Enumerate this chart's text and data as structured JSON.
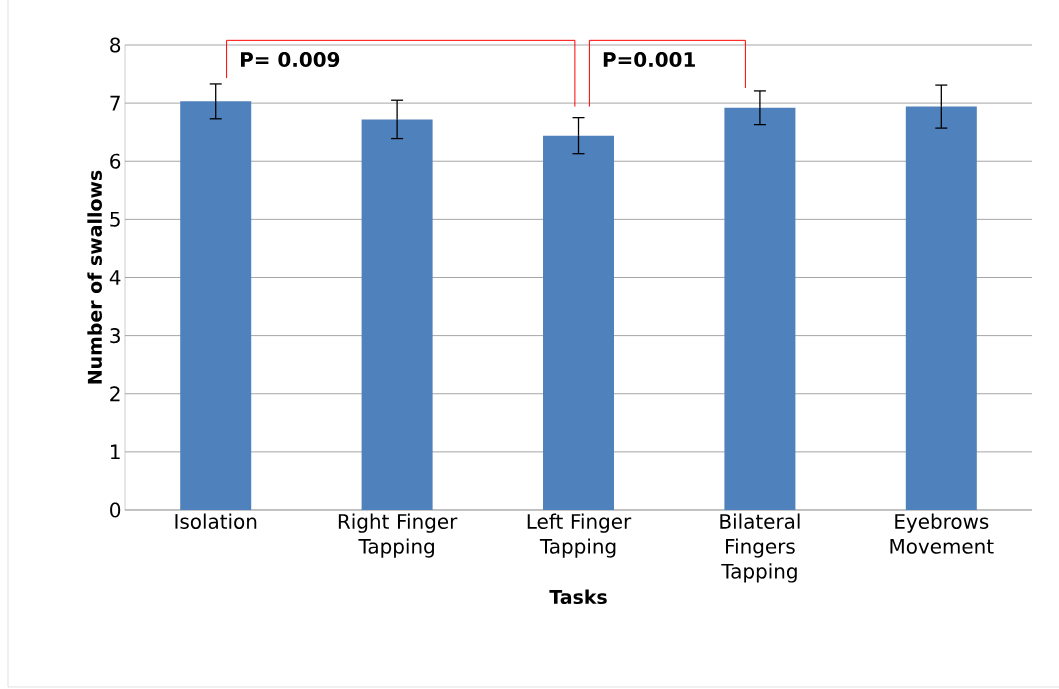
{
  "chart_data": {
    "type": "bar",
    "xlabel": "Tasks",
    "ylabel": "Number of swallows",
    "categories": [
      "Isolation",
      "Right Finger Tapping",
      "Left Finger Tapping",
      "Bilateral Fingers Tapping",
      "Eyebrows Movement"
    ],
    "values": [
      7.03,
      6.72,
      6.44,
      6.92,
      6.94
    ],
    "errors": [
      0.3,
      0.33,
      0.31,
      0.29,
      0.37
    ],
    "color": "#4f81bd",
    "ylim": [
      0,
      8
    ],
    "yticks": [
      0,
      1,
      2,
      3,
      4,
      5,
      6,
      7,
      8
    ],
    "grid": "y",
    "annotations": [
      "P= 0.009",
      "P=0.001"
    ]
  }
}
